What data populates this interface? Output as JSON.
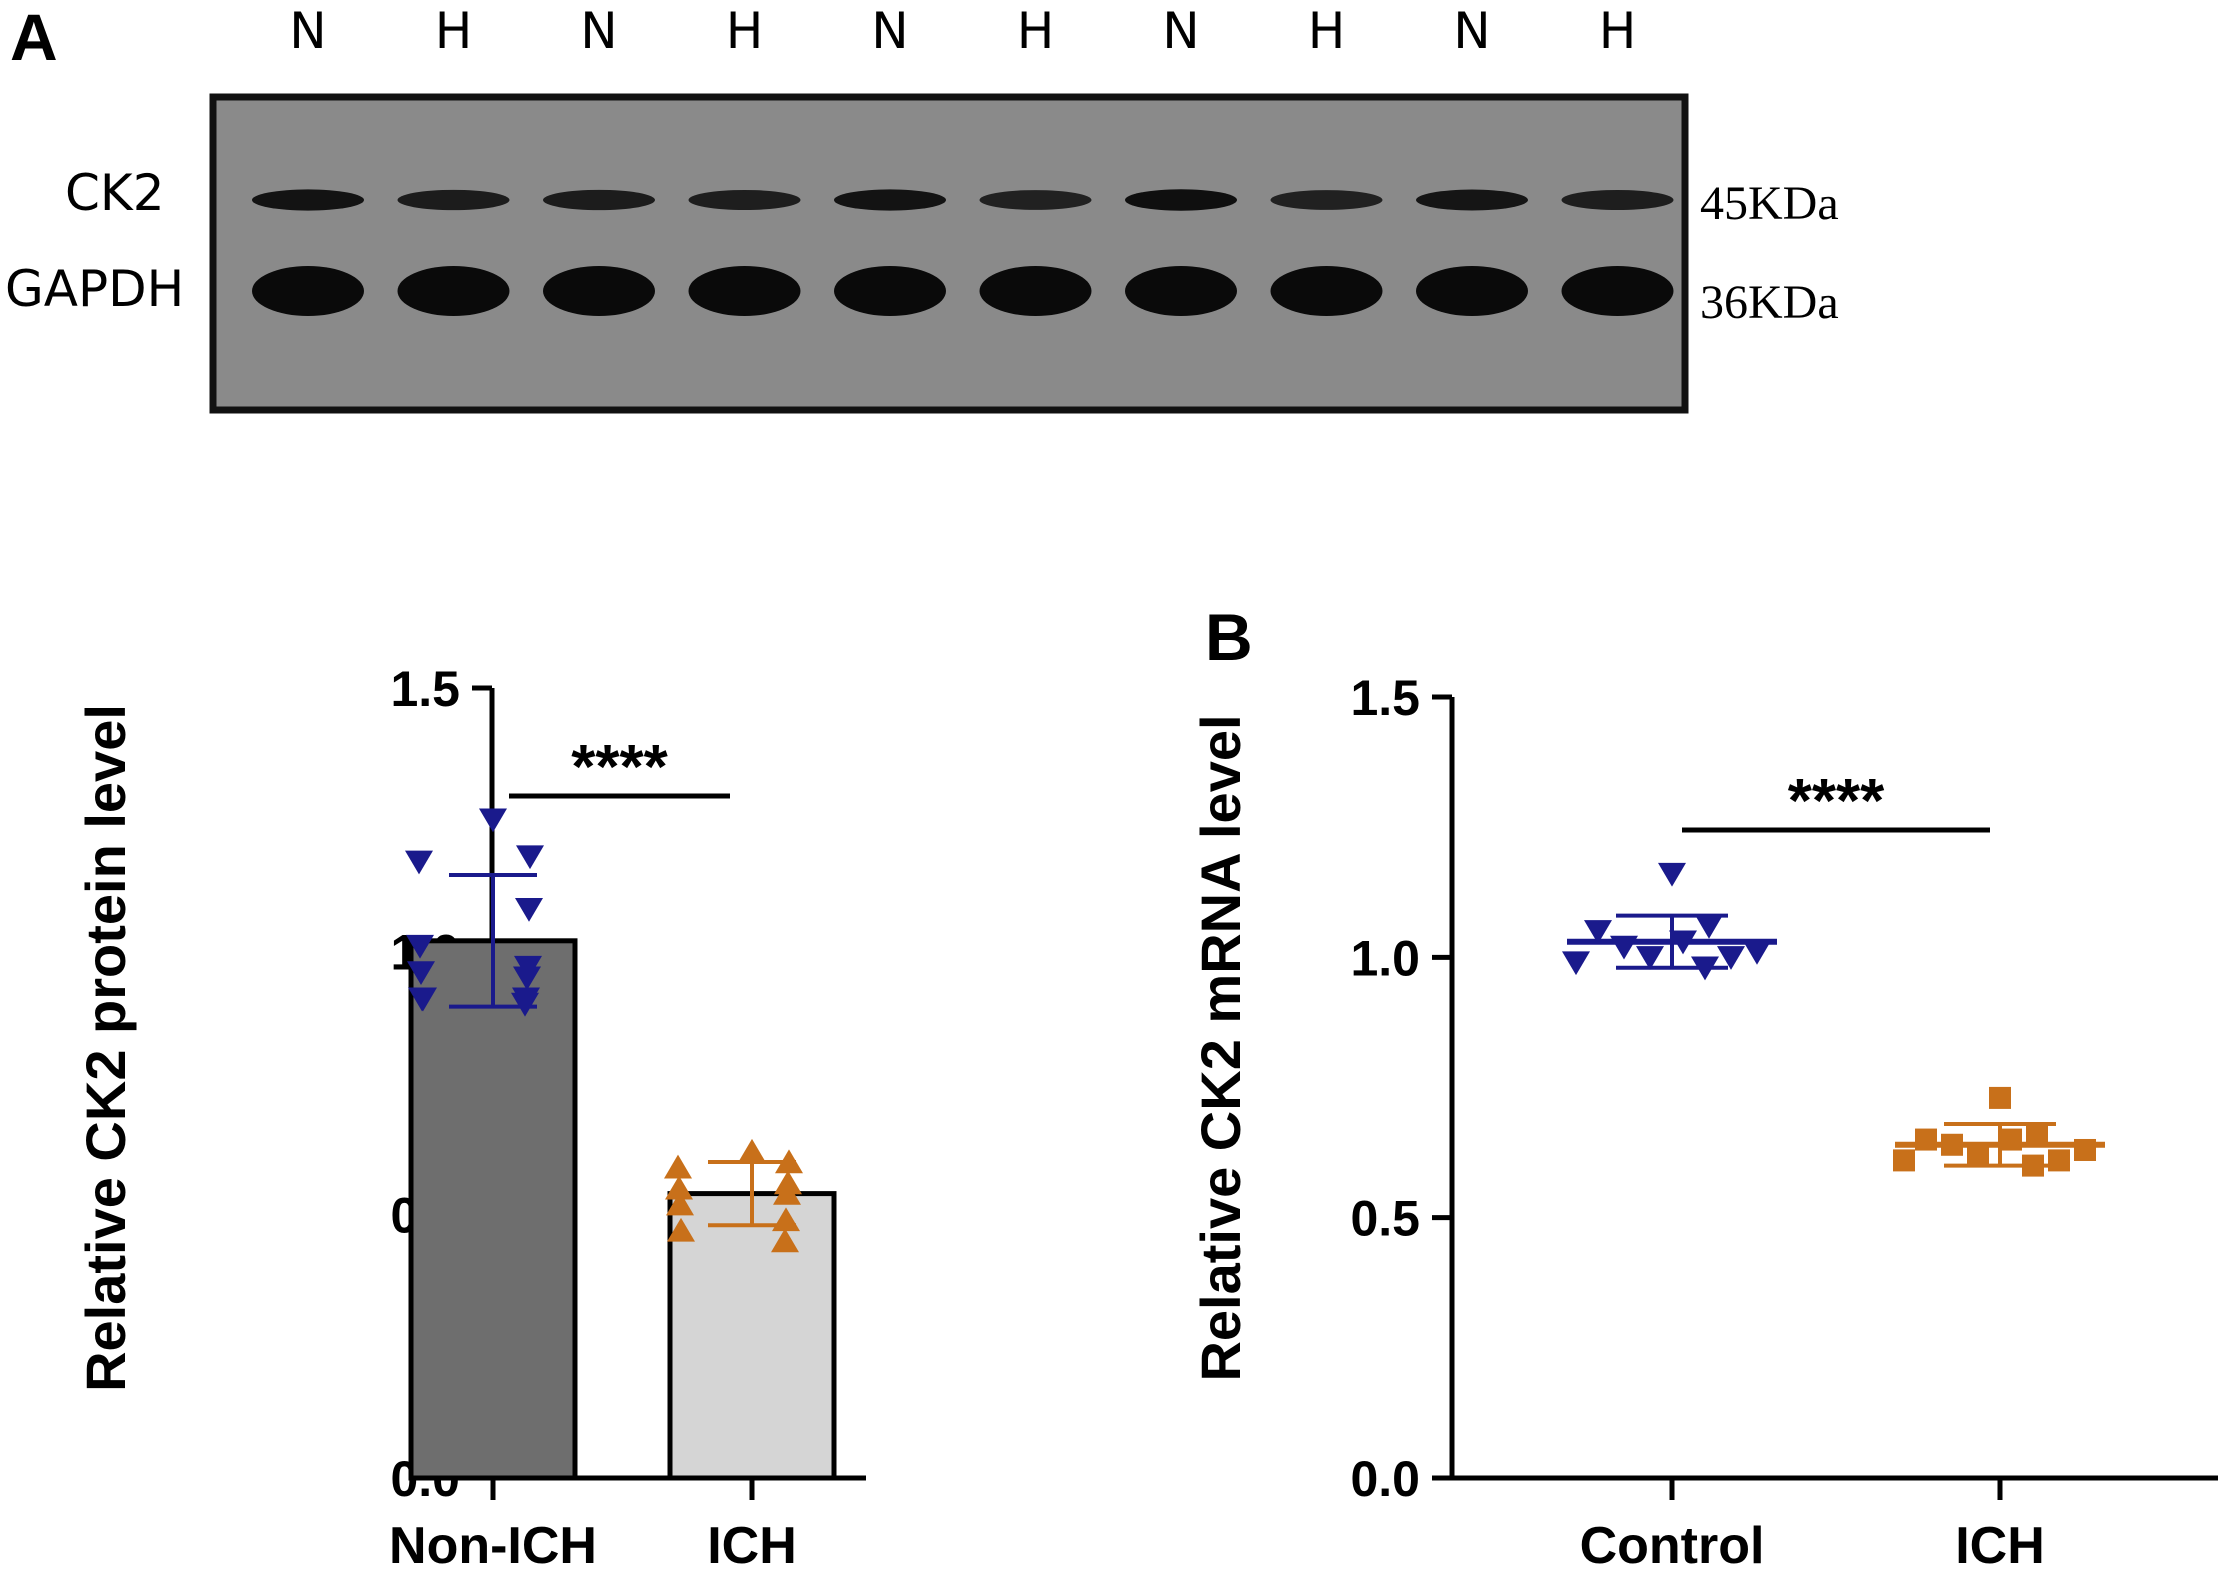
{
  "panel_a_letter": "A",
  "panel_b_letter": "B",
  "blot": {
    "lanes": [
      "N",
      "H",
      "N",
      "H",
      "N",
      "H",
      "N",
      "H",
      "N",
      "H"
    ],
    "bands": [
      {
        "name": "CK2",
        "mw": "45KDa",
        "intensity": [
          0.85,
          0.7,
          0.7,
          0.65,
          0.85,
          0.6,
          0.9,
          0.6,
          0.8,
          0.65
        ]
      },
      {
        "name": "GAPDH",
        "mw": "36KDa",
        "intensity": [
          1,
          1,
          1,
          1,
          1,
          1,
          1,
          1,
          1,
          1
        ]
      }
    ],
    "colors": {
      "background": "#8a8a8a",
      "border": "#111111",
      "band": "#0a0a0a"
    }
  },
  "chart_data": [
    {
      "type": "bar",
      "title": "",
      "xlabel": "",
      "ylabel": "Relative CK2 protein level",
      "ylim": [
        0,
        1.5
      ],
      "yticks": [
        0.0,
        0.5,
        1.0,
        1.5
      ],
      "ytick_labels": [
        "0.0",
        "0.5",
        "1.0",
        "1.5"
      ],
      "categories": [
        "Non-ICH",
        "ICH"
      ],
      "values": [
        1.02,
        0.54
      ],
      "sd": [
        0.125,
        0.06
      ],
      "bar_colors": [
        "#6e6e6e",
        "#d5d5d5"
      ],
      "points": [
        {
          "category": "Non-ICH",
          "marker": "triangle-down",
          "color": "#1a1a8c",
          "values": [
            1.25,
            1.18,
            1.17,
            1.08,
            1.01,
            0.97,
            0.96,
            0.95,
            0.91,
            0.91,
            0.91,
            0.9
          ]
        },
        {
          "category": "ICH",
          "marker": "triangle-up",
          "color": "#c8701a",
          "values": [
            0.62,
            0.6,
            0.59,
            0.56,
            0.55,
            0.54,
            0.52,
            0.49,
            0.47,
            0.45
          ]
        }
      ],
      "significance": {
        "label": "****",
        "from": "Non-ICH",
        "to": "ICH"
      },
      "grid": false,
      "legend": "none"
    },
    {
      "type": "scatter",
      "title": "",
      "xlabel": "",
      "ylabel": "Relative CK2 mRNA level",
      "ylim": [
        0,
        1.5
      ],
      "yticks": [
        0.0,
        0.5,
        1.0,
        1.5
      ],
      "ytick_labels": [
        "0.0",
        "0.5",
        "1.0",
        "1.5"
      ],
      "categories": [
        "Control",
        "ICH"
      ],
      "means": [
        1.03,
        0.64
      ],
      "sd": [
        0.05,
        0.04
      ],
      "points": [
        {
          "category": "Control",
          "marker": "triangle-down",
          "color": "#1a1a8c",
          "values": [
            1.16,
            1.06,
            1.05,
            1.03,
            1.02,
            1.01,
            1.0,
            1.0,
            0.99,
            0.98
          ]
        },
        {
          "category": "ICH",
          "marker": "square",
          "color": "#c8701a",
          "values": [
            0.73,
            0.66,
            0.65,
            0.65,
            0.64,
            0.63,
            0.62,
            0.61,
            0.61,
            0.6
          ]
        }
      ],
      "significance": {
        "label": "****",
        "from": "Control",
        "to": "ICH"
      },
      "grid": false,
      "legend": "none"
    }
  ]
}
